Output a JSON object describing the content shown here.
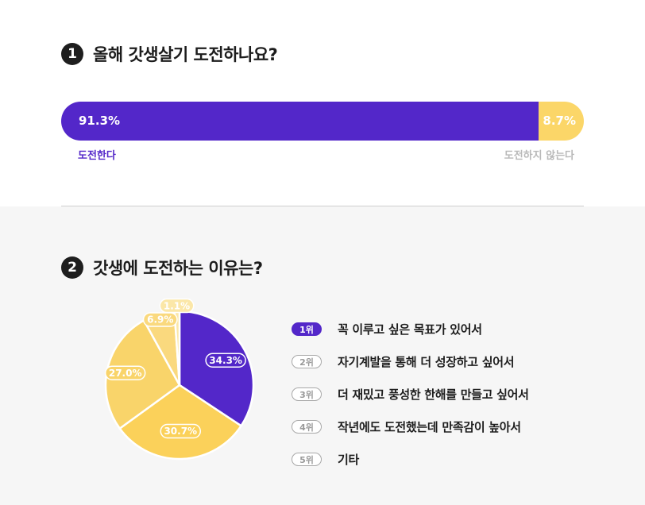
{
  "q1": {
    "number": "1",
    "title": "올해 갓생살기 도전하나요?",
    "yes_value": 91.3,
    "no_value": 8.7,
    "yes_pct_label": "91.3%",
    "no_pct_label": "8.7%",
    "yes_label": "도전한다",
    "no_label": "도전하지 않는다"
  },
  "q2": {
    "number": "2",
    "title": "갓생에 도전하는 이유는?"
  },
  "colors": {
    "purple": "#5327c9",
    "yellow": "#fbd668",
    "yellow_2": "#fbd15a",
    "yellow_3": "#f9d46a",
    "yellow_4": "#fad97e",
    "yellow_5": "#fbe7a8"
  },
  "chart_data": [
    {
      "type": "bar",
      "title": "올해 갓생살기 도전하나요?",
      "categories": [
        "도전한다",
        "도전하지 않는다"
      ],
      "values": [
        91.3,
        8.7
      ]
    },
    {
      "type": "pie",
      "title": "갓생에 도전하는 이유는?",
      "categories": [
        "꼭 이루고 싶은 목표가 있어서",
        "자기계발을 통해 더 성장하고 싶어서",
        "더 재밌고 풍성한 한해를 만들고 싶어서",
        "작년에도 도전했는데 만족감이 높아서",
        "기타"
      ],
      "values": [
        34.3,
        30.7,
        27.0,
        6.9,
        1.1
      ],
      "labels": [
        "34.3%",
        "30.7%",
        "27.0%",
        "6.9%",
        "1.1%"
      ],
      "ranks": [
        "1위",
        "2위",
        "3위",
        "4위",
        "5위"
      ]
    }
  ]
}
